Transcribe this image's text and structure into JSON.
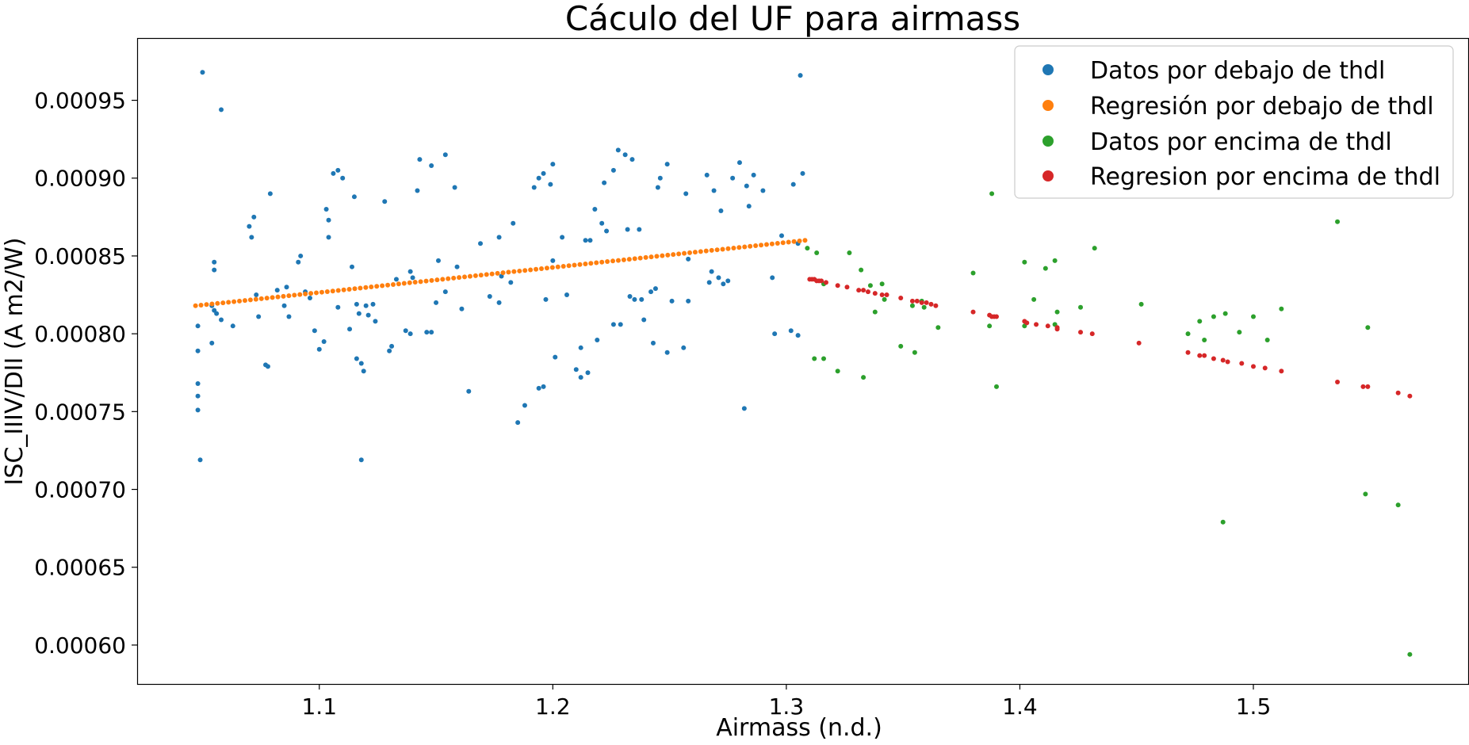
{
  "chart_data": {
    "type": "scatter",
    "title": "Cáculo del UF para airmass",
    "xlabel": "Airmass (n.d.)",
    "ylabel": "ISC_IIIV/DII (A m2/W)",
    "xlim": [
      1.022,
      1.592
    ],
    "ylim": [
      0.000575,
      0.00099
    ],
    "x_ticks": [
      1.1,
      1.2,
      1.3,
      1.4,
      1.5
    ],
    "x_tick_labels": [
      "1.1",
      "1.2",
      "1.3",
      "1.4",
      "1.5"
    ],
    "y_ticks": [
      0.0006,
      0.00065,
      0.0007,
      0.00075,
      0.0008,
      0.00085,
      0.0009,
      0.00095
    ],
    "y_tick_labels": [
      "0.00060",
      "0.00065",
      "0.00070",
      "0.00075",
      "0.00080",
      "0.00085",
      "0.00090",
      "0.00095"
    ],
    "grid": false,
    "legend_position": "top-right",
    "series": [
      {
        "name": "Datos por debajo de thdl",
        "color": "#1f77b4",
        "points": [
          [
            1.05,
            0.000968
          ],
          [
            1.058,
            0.000944
          ],
          [
            1.306,
            0.000966
          ],
          [
            1.048,
            0.000805
          ],
          [
            1.048,
            0.000789
          ],
          [
            1.048,
            0.000768
          ],
          [
            1.048,
            0.00076
          ],
          [
            1.048,
            0.000751
          ],
          [
            1.049,
            0.000719
          ],
          [
            1.055,
            0.000846
          ],
          [
            1.055,
            0.000841
          ],
          [
            1.054,
            0.000818
          ],
          [
            1.055,
            0.000815
          ],
          [
            1.056,
            0.000813
          ],
          [
            1.058,
            0.000809
          ],
          [
            1.054,
            0.000794
          ],
          [
            1.063,
            0.000805
          ],
          [
            1.07,
            0.000869
          ],
          [
            1.072,
            0.000875
          ],
          [
            1.071,
            0.000862
          ],
          [
            1.079,
            0.00089
          ],
          [
            1.073,
            0.000825
          ],
          [
            1.074,
            0.000811
          ],
          [
            1.077,
            0.00078
          ],
          [
            1.078,
            0.000779
          ],
          [
            1.082,
            0.000828
          ],
          [
            1.086,
            0.00083
          ],
          [
            1.085,
            0.000818
          ],
          [
            1.087,
            0.000811
          ],
          [
            1.092,
            0.00085
          ],
          [
            1.091,
            0.000846
          ],
          [
            1.094,
            0.000827
          ],
          [
            1.096,
            0.000823
          ],
          [
            1.098,
            0.000802
          ],
          [
            1.1,
            0.00079
          ],
          [
            1.102,
            0.000795
          ],
          [
            1.103,
            0.00088
          ],
          [
            1.104,
            0.000873
          ],
          [
            1.104,
            0.000862
          ],
          [
            1.106,
            0.000903
          ],
          [
            1.108,
            0.000905
          ],
          [
            1.108,
            0.000817
          ],
          [
            1.11,
            0.0009
          ],
          [
            1.113,
            0.000803
          ],
          [
            1.114,
            0.000843
          ],
          [
            1.115,
            0.000888
          ],
          [
            1.116,
            0.000819
          ],
          [
            1.117,
            0.000813
          ],
          [
            1.116,
            0.000784
          ],
          [
            1.118,
            0.000781
          ],
          [
            1.119,
            0.000776
          ],
          [
            1.118,
            0.000719
          ],
          [
            1.12,
            0.000818
          ],
          [
            1.121,
            0.000812
          ],
          [
            1.123,
            0.000819
          ],
          [
            1.124,
            0.000808
          ],
          [
            1.128,
            0.000885
          ],
          [
            1.13,
            0.000789
          ],
          [
            1.131,
            0.000792
          ],
          [
            1.133,
            0.000835
          ],
          [
            1.137,
            0.000802
          ],
          [
            1.139,
            0.0008
          ],
          [
            1.139,
            0.00084
          ],
          [
            1.14,
            0.000836
          ],
          [
            1.142,
            0.000892
          ],
          [
            1.143,
            0.000912
          ],
          [
            1.146,
            0.000801
          ],
          [
            1.148,
            0.000908
          ],
          [
            1.148,
            0.000801
          ],
          [
            1.15,
            0.00082
          ],
          [
            1.151,
            0.000847
          ],
          [
            1.154,
            0.000915
          ],
          [
            1.154,
            0.000827
          ],
          [
            1.158,
            0.000894
          ],
          [
            1.159,
            0.000843
          ],
          [
            1.161,
            0.000816
          ],
          [
            1.164,
            0.000763
          ],
          [
            1.169,
            0.000858
          ],
          [
            1.173,
            0.000824
          ],
          [
            1.177,
            0.000862
          ],
          [
            1.177,
            0.00082
          ],
          [
            1.178,
            0.000837
          ],
          [
            1.182,
            0.000833
          ],
          [
            1.183,
            0.000871
          ],
          [
            1.185,
            0.000743
          ],
          [
            1.188,
            0.000754
          ],
          [
            1.192,
            0.000894
          ],
          [
            1.194,
            0.0009
          ],
          [
            1.194,
            0.000765
          ],
          [
            1.196,
            0.000903
          ],
          [
            1.196,
            0.000766
          ],
          [
            1.197,
            0.000822
          ],
          [
            1.199,
            0.000896
          ],
          [
            1.2,
            0.000909
          ],
          [
            1.2,
            0.000847
          ],
          [
            1.201,
            0.000785
          ],
          [
            1.204,
            0.000862
          ],
          [
            1.206,
            0.000825
          ],
          [
            1.21,
            0.000777
          ],
          [
            1.212,
            0.000791
          ],
          [
            1.212,
            0.000772
          ],
          [
            1.214,
            0.00086
          ],
          [
            1.215,
            0.000775
          ],
          [
            1.216,
            0.00086
          ],
          [
            1.218,
            0.00088
          ],
          [
            1.219,
            0.000796
          ],
          [
            1.221,
            0.000871
          ],
          [
            1.222,
            0.000897
          ],
          [
            1.223,
            0.000866
          ],
          [
            1.226,
            0.000905
          ],
          [
            1.226,
            0.000806
          ],
          [
            1.228,
            0.000918
          ],
          [
            1.229,
            0.000806
          ],
          [
            1.231,
            0.000915
          ],
          [
            1.232,
            0.000867
          ],
          [
            1.233,
            0.000824
          ],
          [
            1.234,
            0.000912
          ],
          [
            1.235,
            0.000822
          ],
          [
            1.237,
            0.000867
          ],
          [
            1.238,
            0.000822
          ],
          [
            1.239,
            0.000809
          ],
          [
            1.242,
            0.000827
          ],
          [
            1.243,
            0.000794
          ],
          [
            1.244,
            0.000829
          ],
          [
            1.245,
            0.000894
          ],
          [
            1.246,
            0.0009
          ],
          [
            1.249,
            0.000909
          ],
          [
            1.249,
            0.000788
          ],
          [
            1.251,
            0.000821
          ],
          [
            1.256,
            0.000791
          ],
          [
            1.257,
            0.00089
          ],
          [
            1.258,
            0.000848
          ],
          [
            1.258,
            0.000821
          ],
          [
            1.266,
            0.000902
          ],
          [
            1.267,
            0.000833
          ],
          [
            1.268,
            0.00084
          ],
          [
            1.269,
            0.000892
          ],
          [
            1.271,
            0.000836
          ],
          [
            1.272,
            0.000879
          ],
          [
            1.273,
            0.000832
          ],
          [
            1.275,
            0.000834
          ],
          [
            1.277,
            0.0009
          ],
          [
            1.28,
            0.00091
          ],
          [
            1.282,
            0.000752
          ],
          [
            1.283,
            0.000895
          ],
          [
            1.284,
            0.000882
          ],
          [
            1.286,
            0.000902
          ],
          [
            1.29,
            0.000892
          ],
          [
            1.294,
            0.000836
          ],
          [
            1.295,
            0.0008
          ],
          [
            1.298,
            0.000863
          ],
          [
            1.302,
            0.000802
          ],
          [
            1.303,
            0.000896
          ],
          [
            1.305,
            0.000858
          ],
          [
            1.305,
            0.000799
          ],
          [
            1.307,
            0.000903
          ]
        ]
      },
      {
        "name": "Regresión por debajo de thdl",
        "color": "#ff7f0e",
        "line": {
          "x_start": 1.047,
          "x_end": 1.308,
          "y_start": 0.000818,
          "y_end": 0.00086,
          "count": 112
        }
      },
      {
        "name": "Datos por encima de thdl",
        "color": "#2ca02c",
        "points": [
          [
            1.309,
            0.000855
          ],
          [
            1.312,
            0.000784
          ],
          [
            1.313,
            0.000852
          ],
          [
            1.316,
            0.000784
          ],
          [
            1.316,
            0.000832
          ],
          [
            1.322,
            0.000776
          ],
          [
            1.327,
            0.000852
          ],
          [
            1.332,
            0.000841
          ],
          [
            1.333,
            0.000772
          ],
          [
            1.336,
            0.000831
          ],
          [
            1.338,
            0.000814
          ],
          [
            1.341,
            0.000832
          ],
          [
            1.342,
            0.000822
          ],
          [
            1.349,
            0.000792
          ],
          [
            1.354,
            0.000818
          ],
          [
            1.355,
            0.000788
          ],
          [
            1.358,
            0.000821
          ],
          [
            1.359,
            0.000817
          ],
          [
            1.365,
            0.000804
          ],
          [
            1.38,
            0.000839
          ],
          [
            1.387,
            0.000805
          ],
          [
            1.388,
            0.00089
          ],
          [
            1.39,
            0.000766
          ],
          [
            1.402,
            0.000846
          ],
          [
            1.402,
            0.000805
          ],
          [
            1.406,
            0.000822
          ],
          [
            1.411,
            0.000842
          ],
          [
            1.415,
            0.000847
          ],
          [
            1.415,
            0.000806
          ],
          [
            1.416,
            0.000814
          ],
          [
            1.426,
            0.000817
          ],
          [
            1.432,
            0.000855
          ],
          [
            1.452,
            0.000819
          ],
          [
            1.472,
            0.0008
          ],
          [
            1.477,
            0.000808
          ],
          [
            1.479,
            0.000796
          ],
          [
            1.483,
            0.000811
          ],
          [
            1.487,
            0.000679
          ],
          [
            1.488,
            0.000813
          ],
          [
            1.494,
            0.000801
          ],
          [
            1.5,
            0.000811
          ],
          [
            1.506,
            0.000796
          ],
          [
            1.512,
            0.000816
          ],
          [
            1.536,
            0.000872
          ],
          [
            1.548,
            0.000697
          ],
          [
            1.549,
            0.000804
          ],
          [
            1.562,
            0.00069
          ],
          [
            1.567,
            0.000594
          ]
        ]
      },
      {
        "name": "Regresion por encima de thdl",
        "color": "#d62728",
        "points": [
          [
            1.31,
            0.000835
          ],
          [
            1.311,
            0.000835
          ],
          [
            1.312,
            0.000835
          ],
          [
            1.313,
            0.000834
          ],
          [
            1.314,
            0.000834
          ],
          [
            1.315,
            0.000834
          ],
          [
            1.317,
            0.000833
          ],
          [
            1.322,
            0.000831
          ],
          [
            1.326,
            0.00083
          ],
          [
            1.331,
            0.000828
          ],
          [
            1.333,
            0.000828
          ],
          [
            1.335,
            0.000827
          ],
          [
            1.338,
            0.000826
          ],
          [
            1.341,
            0.000825
          ],
          [
            1.343,
            0.000825
          ],
          [
            1.349,
            0.000823
          ],
          [
            1.354,
            0.000821
          ],
          [
            1.356,
            0.000821
          ],
          [
            1.358,
            0.00082
          ],
          [
            1.36,
            0.00082
          ],
          [
            1.362,
            0.000819
          ],
          [
            1.364,
            0.000818
          ],
          [
            1.38,
            0.000814
          ],
          [
            1.387,
            0.000812
          ],
          [
            1.388,
            0.000811
          ],
          [
            1.389,
            0.000811
          ],
          [
            1.39,
            0.000811
          ],
          [
            1.402,
            0.000808
          ],
          [
            1.403,
            0.000807
          ],
          [
            1.407,
            0.000806
          ],
          [
            1.412,
            0.000805
          ],
          [
            1.416,
            0.000804
          ],
          [
            1.416,
            0.000803
          ],
          [
            1.426,
            0.000801
          ],
          [
            1.431,
            0.0008
          ],
          [
            1.451,
            0.000794
          ],
          [
            1.472,
            0.000788
          ],
          [
            1.477,
            0.000786
          ],
          [
            1.479,
            0.000786
          ],
          [
            1.483,
            0.000784
          ],
          [
            1.487,
            0.000783
          ],
          [
            1.489,
            0.000782
          ],
          [
            1.495,
            0.000781
          ],
          [
            1.5,
            0.000779
          ],
          [
            1.505,
            0.000778
          ],
          [
            1.512,
            0.000776
          ],
          [
            1.536,
            0.000769
          ],
          [
            1.547,
            0.000766
          ],
          [
            1.549,
            0.000766
          ],
          [
            1.562,
            0.000762
          ],
          [
            1.567,
            0.00076
          ]
        ]
      }
    ]
  }
}
